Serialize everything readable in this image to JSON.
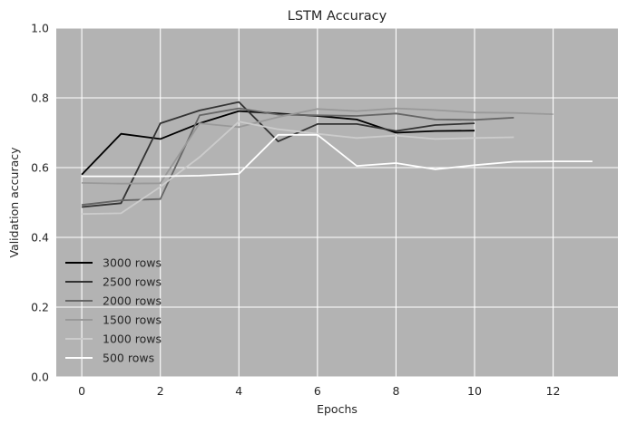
{
  "chart_data": {
    "type": "line",
    "title": "LSTM Accuracy",
    "xlabel": "Epochs",
    "ylabel": "Validation accuracy",
    "xlim": [
      -0.65,
      13.65
    ],
    "ylim": [
      0.0,
      1.0
    ],
    "xticks": [
      0,
      2,
      4,
      6,
      8,
      10,
      12
    ],
    "yticks": [
      0.0,
      0.2,
      0.4,
      0.6,
      0.8,
      1.0
    ],
    "xtick_labels": [
      "0",
      "2",
      "4",
      "6",
      "8",
      "10",
      "12"
    ],
    "ytick_labels": [
      "0.0",
      "0.2",
      "0.4",
      "0.6",
      "0.8",
      "1.0"
    ],
    "grid": true,
    "background": "#b3b3b3",
    "grid_color": "#ffffff",
    "legend_position": "lower-left",
    "series": [
      {
        "name": "3000 rows",
        "color": "#000000",
        "x": [
          0,
          1,
          2,
          3,
          4,
          5,
          6,
          7,
          8,
          9,
          10
        ],
        "y": [
          0.58,
          0.697,
          0.682,
          0.727,
          0.762,
          0.755,
          0.748,
          0.738,
          0.7,
          0.705,
          0.706
        ]
      },
      {
        "name": "2500 rows",
        "color": "#333333",
        "x": [
          0,
          1,
          2,
          3,
          4,
          5,
          6,
          7,
          8,
          9,
          10
        ],
        "y": [
          0.487,
          0.498,
          0.727,
          0.764,
          0.788,
          0.675,
          0.725,
          0.725,
          0.705,
          0.722,
          0.727
        ]
      },
      {
        "name": "2000 rows",
        "color": "#666666",
        "x": [
          0,
          1,
          2,
          3,
          4,
          5,
          6,
          7,
          8,
          9,
          10,
          11
        ],
        "y": [
          0.493,
          0.506,
          0.51,
          0.75,
          0.77,
          0.752,
          0.75,
          0.748,
          0.755,
          0.738,
          0.737,
          0.743
        ]
      },
      {
        "name": "1500 rows",
        "color": "#999999",
        "x": [
          0,
          1,
          2,
          3,
          4,
          5,
          6,
          7,
          8,
          9,
          10,
          11,
          12
        ],
        "y": [
          0.556,
          0.554,
          0.555,
          0.727,
          0.716,
          0.745,
          0.768,
          0.762,
          0.77,
          0.765,
          0.758,
          0.757,
          0.753
        ]
      },
      {
        "name": "1000 rows",
        "color": "#cccccc",
        "x": [
          0,
          1,
          2,
          3,
          4,
          5,
          6,
          7,
          8,
          9,
          10,
          11
        ],
        "y": [
          0.467,
          0.469,
          0.545,
          0.63,
          0.732,
          0.71,
          0.697,
          0.685,
          0.692,
          0.682,
          0.685,
          0.687
        ]
      },
      {
        "name": "500 rows",
        "color": "#ffffff",
        "x": [
          0,
          1,
          2,
          3,
          4,
          5,
          6,
          7,
          8,
          9,
          10,
          11,
          12,
          13
        ],
        "y": [
          0.575,
          0.575,
          0.575,
          0.577,
          0.582,
          0.694,
          0.694,
          0.605,
          0.613,
          0.595,
          0.607,
          0.617,
          0.618,
          0.618
        ]
      }
    ]
  }
}
